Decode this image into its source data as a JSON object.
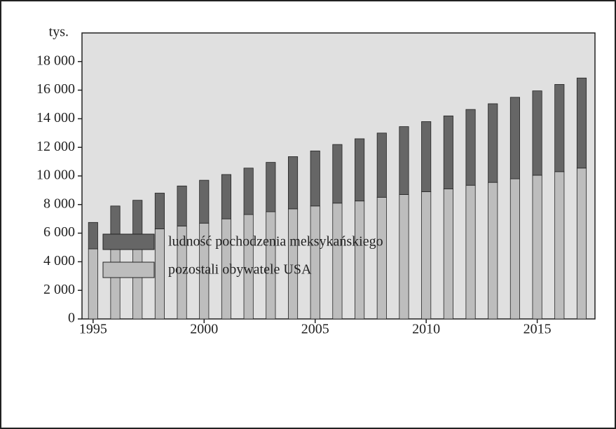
{
  "chart_data": {
    "type": "bar",
    "stacked": true,
    "y_label": "tys.",
    "x": [
      1995,
      1996,
      1997,
      1998,
      1999,
      2000,
      2001,
      2002,
      2003,
      2004,
      2005,
      2006,
      2007,
      2008,
      2009,
      2010,
      2011,
      2012,
      2013,
      2014,
      2015,
      2016,
      2017
    ],
    "series": [
      {
        "name": "pozostali obywatele USA",
        "color": "#bdbdbd",
        "values": [
          4900,
          5700,
          5900,
          6300,
          6500,
          6700,
          7000,
          7300,
          7500,
          7700,
          7900,
          8100,
          8250,
          8500,
          8700,
          8900,
          9100,
          9350,
          9550,
          9800,
          10050,
          10300,
          10550
        ]
      },
      {
        "name": "ludność pochodzenia meksykańskiego",
        "color": "#666666",
        "values": [
          1850,
          2200,
          2400,
          2500,
          2800,
          3000,
          3100,
          3250,
          3450,
          3650,
          3850,
          4100,
          4350,
          4500,
          4750,
          4900,
          5100,
          5300,
          5500,
          5700,
          5900,
          6100,
          6300
        ]
      }
    ],
    "xlim": [
      1994.5,
      2017.6
    ],
    "xticks": [
      1995,
      2000,
      2005,
      2010,
      2015
    ],
    "ylim": [
      0,
      20000
    ],
    "yticks": [
      0,
      {
        "value": 2000,
        "label": "2 000"
      },
      {
        "value": 4000,
        "label": "4 000"
      },
      {
        "value": 6000,
        "label": "6 000"
      },
      {
        "value": 8000,
        "label": "8 000"
      },
      {
        "value": 10000,
        "label": "10 000"
      },
      {
        "value": 12000,
        "label": "12 000"
      },
      {
        "value": 14000,
        "label": "14 000"
      },
      {
        "value": 16000,
        "label": "16 000"
      },
      {
        "value": 18000,
        "label": "18 000"
      }
    ],
    "plot_background": "#e0e0e0"
  }
}
